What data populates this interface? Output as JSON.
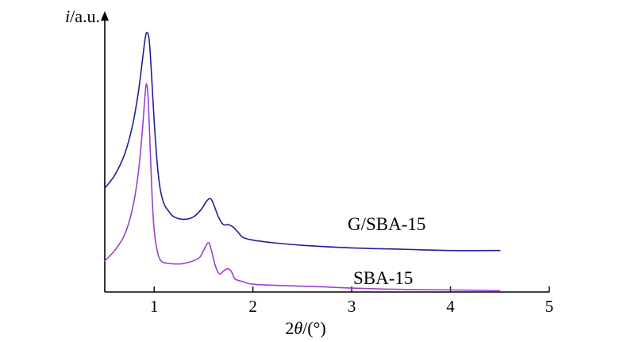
{
  "chart_data": {
    "type": "line",
    "title": "",
    "xlabel": {
      "var": "2θ",
      "unit": "/(°)"
    },
    "ylabel": {
      "var": "i",
      "unit": "/a.u."
    },
    "xlim": [
      0.5,
      5
    ],
    "ylim": [
      0,
      1.05
    ],
    "x_ticks": [
      1,
      2,
      3,
      4,
      5
    ],
    "grid": false,
    "legend": "none",
    "series": [
      {
        "name": "G/SBA-15",
        "color": "#1f1f9e",
        "x": [
          0.5,
          0.6,
          0.7,
          0.78,
          0.84,
          0.88,
          0.91,
          0.93,
          0.95,
          0.97,
          1.0,
          1.03,
          1.06,
          1.1,
          1.15,
          1.2,
          1.3,
          1.4,
          1.48,
          1.53,
          1.57,
          1.6,
          1.65,
          1.7,
          1.75,
          1.8,
          1.85,
          1.9,
          2.0,
          2.2,
          2.5,
          3.0,
          3.5,
          4.0,
          4.5
        ],
        "y": [
          0.4,
          0.45,
          0.53,
          0.64,
          0.77,
          0.89,
          0.98,
          1.0,
          0.97,
          0.86,
          0.66,
          0.5,
          0.4,
          0.34,
          0.31,
          0.29,
          0.28,
          0.29,
          0.32,
          0.35,
          0.36,
          0.34,
          0.29,
          0.26,
          0.26,
          0.25,
          0.23,
          0.21,
          0.2,
          0.19,
          0.18,
          0.17,
          0.165,
          0.16,
          0.16
        ]
      },
      {
        "name": "SBA-15",
        "color": "#9b3fd1",
        "x": [
          0.5,
          0.6,
          0.7,
          0.78,
          0.84,
          0.88,
          0.91,
          0.925,
          0.94,
          0.96,
          0.98,
          1.0,
          1.03,
          1.07,
          1.15,
          1.3,
          1.45,
          1.5,
          1.55,
          1.58,
          1.62,
          1.66,
          1.7,
          1.74,
          1.78,
          1.82,
          1.9,
          2.0,
          2.3,
          2.7,
          3.0,
          3.5,
          4.0,
          4.5
        ],
        "y": [
          0.12,
          0.16,
          0.22,
          0.32,
          0.46,
          0.62,
          0.77,
          0.8,
          0.74,
          0.55,
          0.36,
          0.24,
          0.16,
          0.12,
          0.11,
          0.11,
          0.13,
          0.16,
          0.19,
          0.16,
          0.1,
          0.07,
          0.08,
          0.09,
          0.08,
          0.05,
          0.04,
          0.03,
          0.025,
          0.02,
          0.015,
          0.01,
          0.008,
          0.005
        ]
      }
    ]
  }
}
